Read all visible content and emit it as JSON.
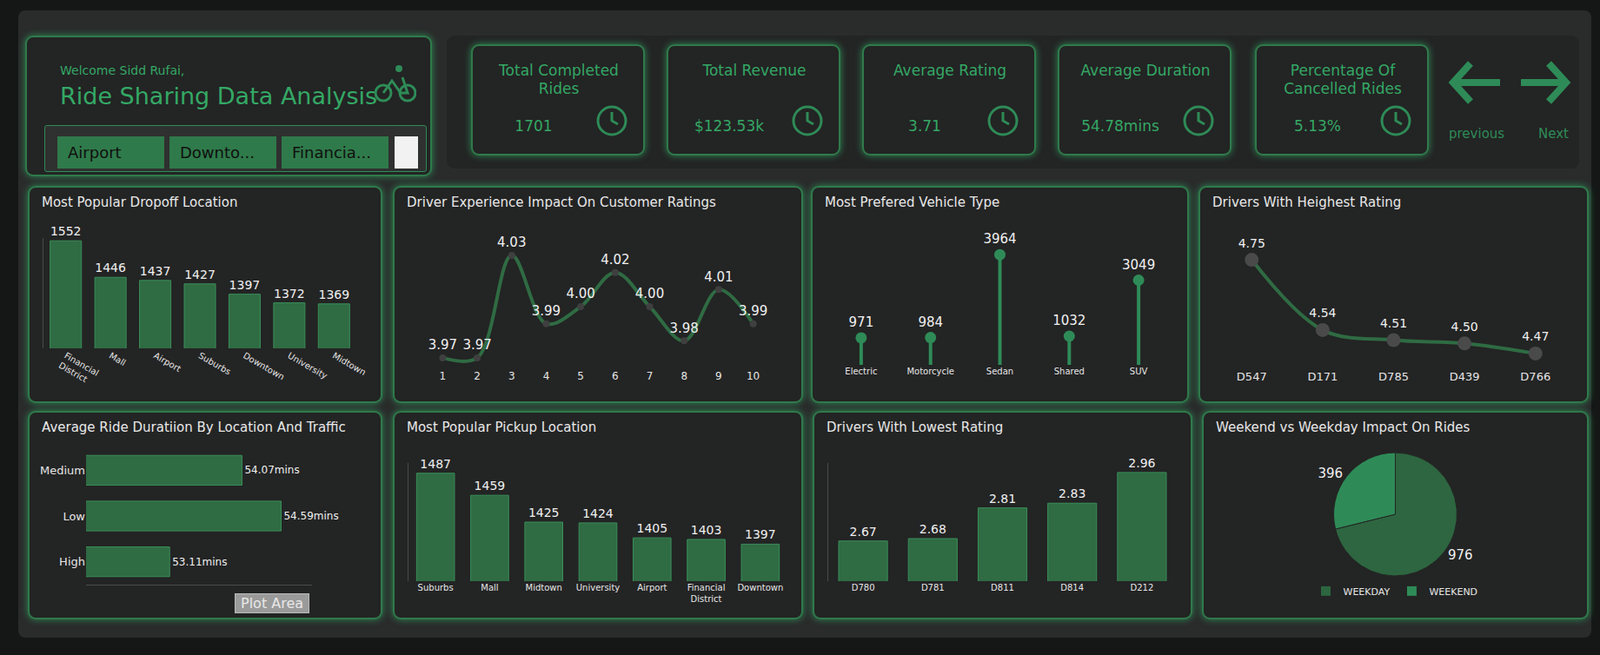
{
  "header": {
    "greeting": "Welcome Sidd Rufai,",
    "title": "Ride Sharing Data Analysis"
  },
  "slicer": {
    "items": [
      "Airport",
      "Downto...",
      "Financia..."
    ]
  },
  "kpis": [
    {
      "label": "Total Completed Rides",
      "value": "1701"
    },
    {
      "label": "Total Revenue",
      "value": "$123.53k"
    },
    {
      "label": "Average Rating",
      "value": "3.71"
    },
    {
      "label": "Average Duration",
      "value": "54.78mins"
    },
    {
      "label": "Percentage Of Cancelled Rides",
      "value": "5.13%"
    }
  ],
  "navigation": {
    "previous": "previous",
    "next": "Next"
  },
  "tooltip": "Plot Area",
  "chart_data": [
    {
      "type": "bar",
      "title": "Most Popular Dropoff Location",
      "categories": [
        "Financial District",
        "Mall",
        "Airport",
        "Suburbs",
        "Downtown",
        "University",
        "Midtown"
      ],
      "values": [
        1552,
        1446,
        1437,
        1427,
        1397,
        1372,
        1369
      ],
      "color": "#2f6b43",
      "ylim": [
        1240,
        1560
      ],
      "data_labels": true,
      "tick_labels": "x",
      "grid": false
    },
    {
      "type": "line",
      "title": "Driver  Experience Impact On Customer Ratings",
      "categories": [
        "1",
        "2",
        "3",
        "4",
        "5",
        "6",
        "7",
        "8",
        "9",
        "10"
      ],
      "values": [
        3.97,
        3.97,
        4.03,
        3.99,
        4.0,
        4.02,
        4.0,
        3.98,
        4.01,
        3.99
      ],
      "value_labels": [
        "3.97",
        "3.97",
        "4.03",
        "3.99",
        "4.00",
        "4.02",
        "4.00",
        "3.98",
        "4.01",
        "3.99"
      ],
      "color": "#2f6b43",
      "marker": "circle",
      "line_style": "spline",
      "data_labels": true,
      "tick_labels": "x",
      "grid": false
    },
    {
      "type": "lollipop",
      "title": "Most Prefered Vehicle Type",
      "categories": [
        "Electric",
        "Motorcycle",
        "Sedan",
        "Shared",
        "SUV"
      ],
      "values": [
        971,
        984,
        3964,
        1032,
        3049
      ],
      "color": "#2e8b57",
      "marker": "circle",
      "data_labels": true,
      "tick_labels": "x",
      "grid": false
    },
    {
      "type": "line",
      "title": "Drivers With Heighest Rating",
      "categories": [
        "D547",
        "D171",
        "D785",
        "D439",
        "D766"
      ],
      "values": [
        4.75,
        4.54,
        4.51,
        4.5,
        4.47
      ],
      "value_labels": [
        "4.75",
        "4.54",
        "4.51",
        "4.50",
        "4.47"
      ],
      "color": "#2f6b43",
      "marker": "circle",
      "line_style": "spline",
      "data_labels": true,
      "tick_labels": "x",
      "grid": false
    },
    {
      "type": "bar",
      "orientation": "horizontal",
      "title": "Average Ride Duratiion By Location And Traffic",
      "categories": [
        "Medium",
        "Low",
        "High"
      ],
      "values": [
        54.07,
        54.59,
        53.11
      ],
      "value_labels": [
        "54.07mins",
        "54.59mins",
        "53.11mins"
      ],
      "color": "#2f6b43",
      "xlim": [
        52,
        55
      ],
      "data_labels": true,
      "tick_labels": "y",
      "grid": false
    },
    {
      "type": "bar",
      "title": "Most Popular Pickup Location",
      "categories": [
        "Suburbs",
        "Mall",
        "Midtown",
        "University",
        "Airport",
        "Financial District",
        "Downtown"
      ],
      "values": [
        1487,
        1459,
        1425,
        1424,
        1405,
        1403,
        1397
      ],
      "color": "#2f6b43",
      "ylim": [
        1350,
        1500
      ],
      "data_labels": true,
      "tick_labels": "x",
      "grid": false
    },
    {
      "type": "bar",
      "title": "Drivers With Lowest Rating",
      "categories": [
        "D780",
        "D781",
        "D811",
        "D814",
        "D212"
      ],
      "values": [
        2.67,
        2.68,
        2.81,
        2.83,
        2.96
      ],
      "color": "#2f6b43",
      "ylim": [
        2.5,
        3.0
      ],
      "data_labels": true,
      "tick_labels": "x",
      "grid": false
    },
    {
      "type": "pie",
      "title": "Weekend vs Weekday Impact On Rides",
      "categories": [
        "WEEKDAY",
        "WEEKEND"
      ],
      "values": [
        976,
        396
      ],
      "colors": [
        "#2d6640",
        "#2e8b57"
      ],
      "data_labels": true,
      "legend": "bottom"
    }
  ]
}
